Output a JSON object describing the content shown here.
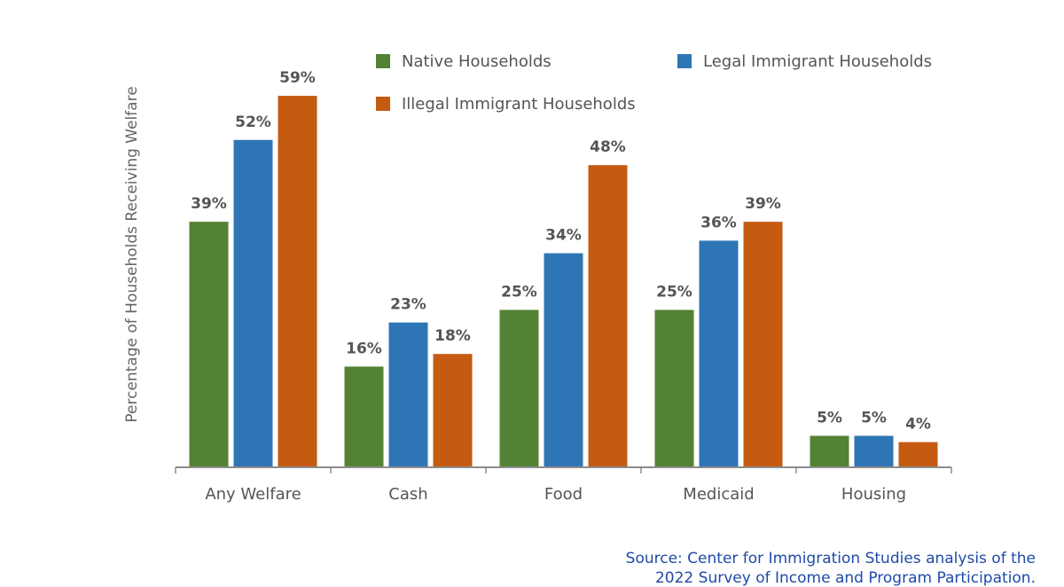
{
  "chart_data": {
    "type": "bar",
    "title": "",
    "xlabel": "",
    "ylabel": "Percentage of Households Receiving Welfare",
    "categories": [
      "Any Welfare",
      "Cash",
      "Food",
      "Medicaid",
      "Housing"
    ],
    "series": [
      {
        "name": "Native Households",
        "color": "#548235",
        "values": [
          39,
          16,
          25,
          25,
          5
        ],
        "labels": [
          "39%",
          "16%",
          "25%",
          "25%",
          "5%"
        ]
      },
      {
        "name": "Legal Immigrant Households",
        "color": "#2e75b6",
        "values": [
          52,
          23,
          34,
          36,
          5
        ],
        "labels": [
          "52%",
          "23%",
          "34%",
          "36%",
          "5%"
        ]
      },
      {
        "name": "Illegal Immigrant Households",
        "color": "#c55a11",
        "values": [
          59,
          18,
          48,
          39,
          4
        ],
        "labels": [
          "59%",
          "18%",
          "48%",
          "39%",
          "4%"
        ]
      }
    ],
    "ylim": [
      0,
      60
    ],
    "grid": false,
    "legend_position": "top"
  },
  "source": {
    "line1": "Source: Center for Immigration Studies analysis of the",
    "line2": "2022 Survey of Income and Program Participation."
  }
}
